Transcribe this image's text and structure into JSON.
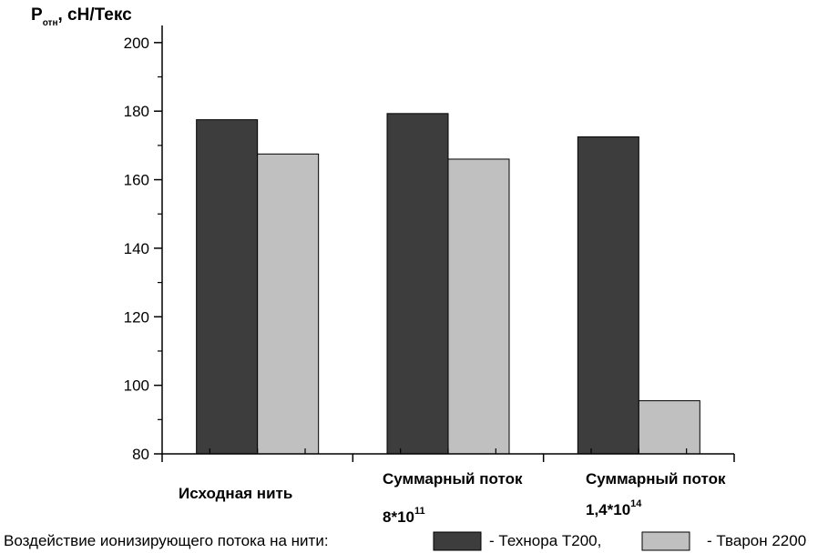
{
  "chart_data": {
    "type": "bar",
    "title": "",
    "ylabel_main": "P",
    "ylabel_sub": "отн",
    "ylabel_unit": ", сН/Текс",
    "xlabel": "",
    "ylim": [
      80,
      205
    ],
    "yticks": [
      80,
      100,
      120,
      140,
      160,
      180,
      200
    ],
    "tick_labels": [
      "80",
      "100",
      "120",
      "140",
      "160",
      "180",
      "200"
    ],
    "categories": [
      {
        "line1": "Исходная нить",
        "line2_base": "",
        "line2_exp": ""
      },
      {
        "line1": "Суммарный поток",
        "line2_base": "8*10",
        "line2_exp": "11"
      },
      {
        "line1": "Суммарный поток",
        "line2_base": "1,4*10",
        "line2_exp": "14"
      }
    ],
    "series": [
      {
        "name": "Технора Т200",
        "color": "#3d3d3d",
        "values": [
          177.5,
          179.3,
          172.5
        ]
      },
      {
        "name": "Тварон 2200",
        "color": "#c0c0c0",
        "values": [
          167.5,
          166,
          95.5
        ]
      }
    ],
    "legend": {
      "prefix": "Воздействие ионизирующего потока на нити:",
      "sep1": "- Технора Т200,",
      "sep2": "- Тварон 2200",
      "position": "bottom"
    },
    "grid": false
  }
}
